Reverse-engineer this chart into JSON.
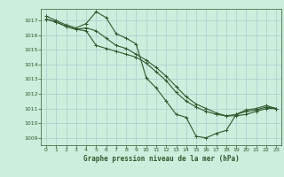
{
  "title": "Graphe pression niveau de la mer (hPa)",
  "background_color": "#cceedd",
  "grid_color": "#aacccc",
  "line_color": "#2d5a2d",
  "xlim": [
    -0.5,
    23.5
  ],
  "ylim": [
    1008.5,
    1017.8
  ],
  "yticks": [
    1009,
    1010,
    1011,
    1012,
    1013,
    1014,
    1015,
    1016,
    1017
  ],
  "xticks": [
    0,
    1,
    2,
    3,
    4,
    5,
    6,
    7,
    8,
    9,
    10,
    11,
    12,
    13,
    14,
    15,
    16,
    17,
    18,
    19,
    20,
    21,
    22,
    23
  ],
  "series1": [
    1017.3,
    1017.0,
    1016.7,
    1016.5,
    1016.8,
    1017.6,
    1017.2,
    1016.1,
    1015.8,
    1015.4,
    1013.1,
    1012.4,
    1011.5,
    1010.6,
    1010.4,
    1009.1,
    1009.0,
    1009.3,
    1009.5,
    1010.6,
    1010.9,
    1011.0,
    1011.2,
    1011.0
  ],
  "series2": [
    1017.1,
    1016.9,
    1016.6,
    1016.4,
    1016.5,
    1016.3,
    1015.8,
    1015.3,
    1015.1,
    1014.7,
    1014.3,
    1013.8,
    1013.2,
    1012.5,
    1011.8,
    1011.3,
    1011.0,
    1010.7,
    1010.5,
    1010.6,
    1010.8,
    1010.9,
    1011.1,
    1011.0
  ],
  "series3": [
    1017.1,
    1016.9,
    1016.6,
    1016.4,
    1016.3,
    1015.3,
    1015.1,
    1014.9,
    1014.7,
    1014.5,
    1014.1,
    1013.5,
    1012.9,
    1012.1,
    1011.5,
    1011.1,
    1010.8,
    1010.6,
    1010.5,
    1010.5,
    1010.6,
    1010.8,
    1011.0,
    1011.0
  ]
}
